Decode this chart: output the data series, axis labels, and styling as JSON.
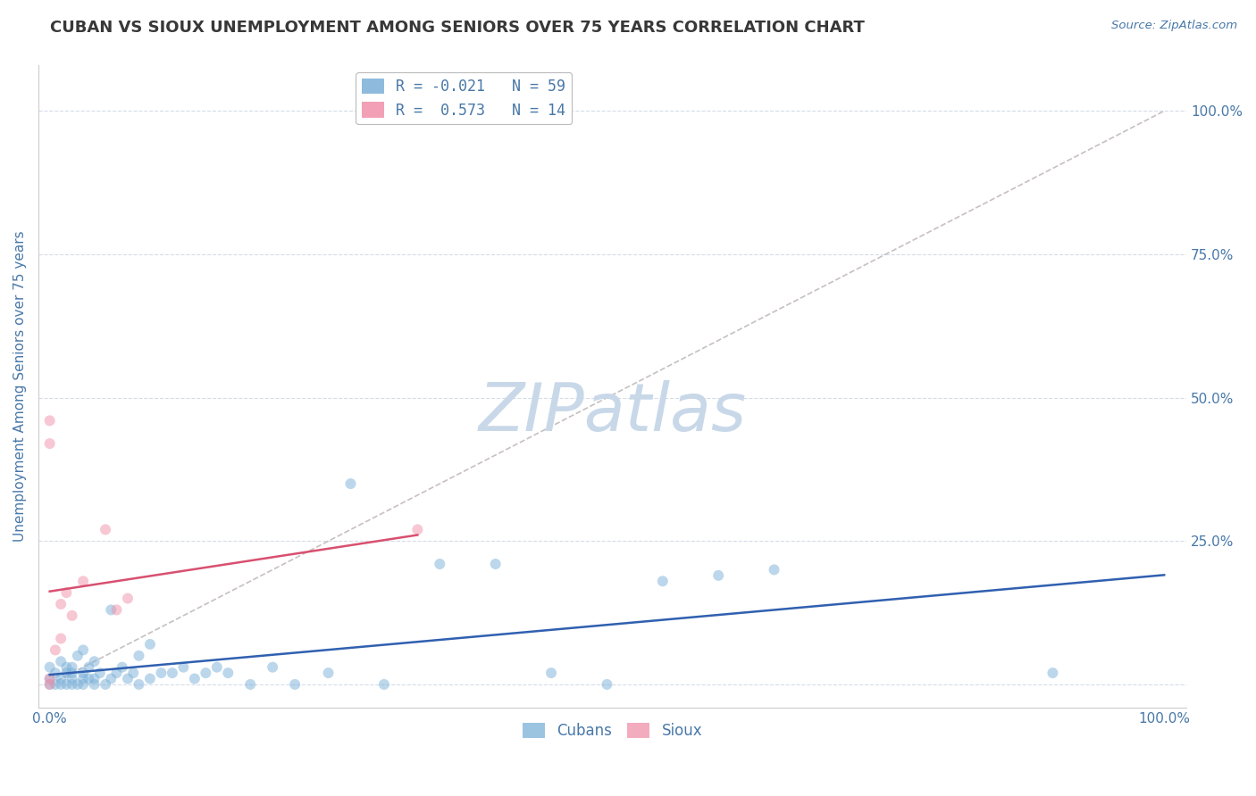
{
  "title": "CUBAN VS SIOUX UNEMPLOYMENT AMONG SENIORS OVER 75 YEARS CORRELATION CHART",
  "source": "Source: ZipAtlas.com",
  "ylabel": "Unemployment Among Seniors over 75 years",
  "y_ticks": [
    0.0,
    0.25,
    0.5,
    0.75,
    1.0
  ],
  "y_tick_labels": [
    "",
    "25.0%",
    "50.0%",
    "75.0%",
    "100.0%"
  ],
  "x_ticks": [
    0.0,
    1.0
  ],
  "x_tick_labels": [
    "0.0%",
    "100.0%"
  ],
  "xlim": [
    -0.01,
    1.02
  ],
  "ylim": [
    -0.04,
    1.08
  ],
  "background_color": "#ffffff",
  "watermark": "ZIPatlas",
  "watermark_color": "#c8d8e8",
  "cubans_x": [
    0.0,
    0.0,
    0.0,
    0.005,
    0.005,
    0.01,
    0.01,
    0.01,
    0.015,
    0.015,
    0.015,
    0.02,
    0.02,
    0.02,
    0.02,
    0.025,
    0.025,
    0.03,
    0.03,
    0.03,
    0.03,
    0.035,
    0.035,
    0.04,
    0.04,
    0.04,
    0.045,
    0.05,
    0.055,
    0.055,
    0.06,
    0.065,
    0.07,
    0.075,
    0.08,
    0.08,
    0.09,
    0.09,
    0.1,
    0.11,
    0.12,
    0.13,
    0.14,
    0.15,
    0.16,
    0.18,
    0.2,
    0.22,
    0.25,
    0.27,
    0.3,
    0.35,
    0.4,
    0.45,
    0.5,
    0.55,
    0.6,
    0.65,
    0.9
  ],
  "cubans_y": [
    0.0,
    0.01,
    0.03,
    0.0,
    0.02,
    0.0,
    0.01,
    0.04,
    0.0,
    0.02,
    0.03,
    0.0,
    0.01,
    0.02,
    0.03,
    0.0,
    0.05,
    0.0,
    0.01,
    0.02,
    0.06,
    0.01,
    0.03,
    0.0,
    0.01,
    0.04,
    0.02,
    0.0,
    0.01,
    0.13,
    0.02,
    0.03,
    0.01,
    0.02,
    0.0,
    0.05,
    0.01,
    0.07,
    0.02,
    0.02,
    0.03,
    0.01,
    0.02,
    0.03,
    0.02,
    0.0,
    0.03,
    0.0,
    0.02,
    0.35,
    0.0,
    0.21,
    0.21,
    0.02,
    0.0,
    0.18,
    0.19,
    0.2,
    0.02
  ],
  "sioux_x": [
    0.0,
    0.0,
    0.0,
    0.0,
    0.005,
    0.01,
    0.01,
    0.015,
    0.02,
    0.03,
    0.05,
    0.06,
    0.07,
    0.33
  ],
  "sioux_y": [
    0.0,
    0.01,
    0.42,
    0.46,
    0.06,
    0.08,
    0.14,
    0.16,
    0.12,
    0.18,
    0.27,
    0.13,
    0.15,
    0.27
  ],
  "dot_size": 75,
  "dot_alpha": 0.5,
  "cuban_color": "#7ab0d8",
  "sioux_color": "#f090a8",
  "trend_line_cuban_color": "#3060b0",
  "trend_line_sioux_color": "#d85070",
  "diagonal_color": "#c8c0c0",
  "grid_color": "#d5dce8",
  "title_color": "#383838",
  "axis_label_color": "#4878a8",
  "tick_label_color": "#4878a8",
  "legend_cuban_label": "R = -0.021   N = 59",
  "legend_sioux_label": "R =  0.573   N = 14",
  "bottom_legend_cuban": "Cubans",
  "bottom_legend_sioux": "Sioux"
}
